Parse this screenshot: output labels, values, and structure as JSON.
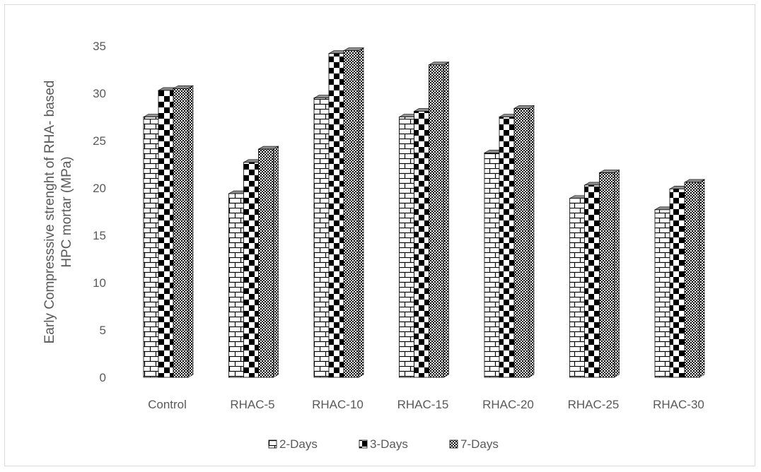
{
  "chart_data": {
    "type": "bar",
    "title": "",
    "ylabel_lines": [
      "Early Compresssive strenght of RHA- based",
      "HPC mortar (MPa)"
    ],
    "xlabel": "",
    "categories": [
      "Control",
      "RHAC-5",
      "RHAC-10",
      "RHAC-15",
      "RHAC-20",
      "RHAC-25",
      "RHAC-30"
    ],
    "series": [
      {
        "name": "2-Days",
        "pattern": "brick",
        "values": [
          27.5,
          19.4,
          29.5,
          27.5,
          23.7,
          18.9,
          17.7
        ]
      },
      {
        "name": "3-Days",
        "pattern": "checker",
        "values": [
          30.3,
          22.7,
          34.2,
          28.1,
          27.5,
          20.3,
          19.9
        ]
      },
      {
        "name": "7-Days",
        "pattern": "fine-checker",
        "values": [
          30.5,
          24.1,
          34.5,
          33.0,
          28.4,
          21.6,
          20.6
        ]
      }
    ],
    "ylim": [
      0,
      35
    ],
    "yticks": [
      0,
      5,
      10,
      15,
      20,
      25,
      30,
      35
    ],
    "grid": false,
    "legend_position": "bottom"
  }
}
